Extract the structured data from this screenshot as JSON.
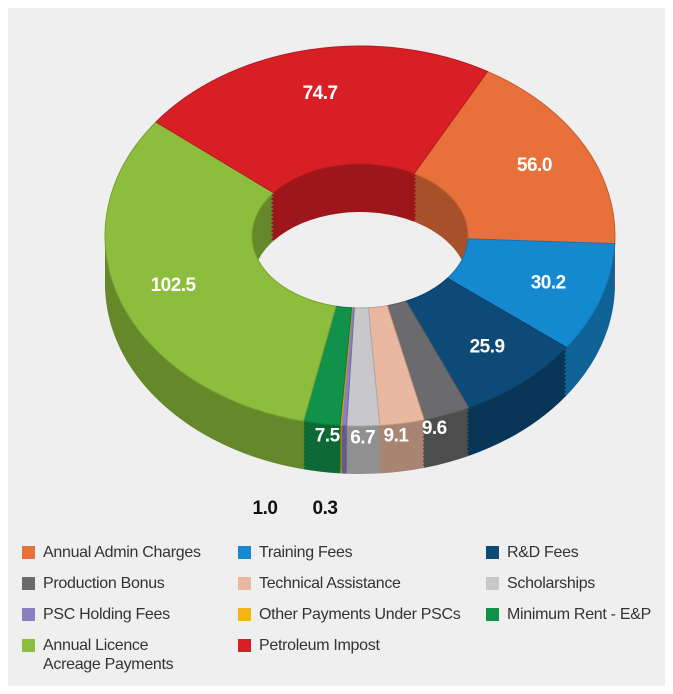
{
  "chart_data": {
    "type": "donut",
    "categories": [
      "Annual Admin Charges",
      "Training Fees",
      "R&D Fees",
      "Production Bonus",
      "Technical Assistance",
      "Scholarships",
      "PSC Holding Fees",
      "Other Payments Under PSCs",
      "Minimum Rent - E&P",
      "Annual Licence Acreage Payments",
      "Petroleum Impost"
    ],
    "values": [
      56.0,
      30.2,
      25.9,
      9.6,
      9.1,
      6.7,
      1.0,
      0.3,
      7.5,
      102.5,
      74.7
    ],
    "value_labels": [
      "56.0",
      "30.2",
      "25.9",
      "9.6",
      "9.1",
      "6.7",
      "1.0",
      "0.3",
      "7.5",
      "102.5",
      "74.7"
    ],
    "colors": [
      "#e8703a",
      "#1589d0",
      "#0d4a78",
      "#6b6b6d",
      "#eab8a0",
      "#c8c8ca",
      "#8a7fc0",
      "#f2b418",
      "#10924a",
      "#8cbd3c",
      "#d81f26"
    ],
    "legend": "bottom"
  }
}
